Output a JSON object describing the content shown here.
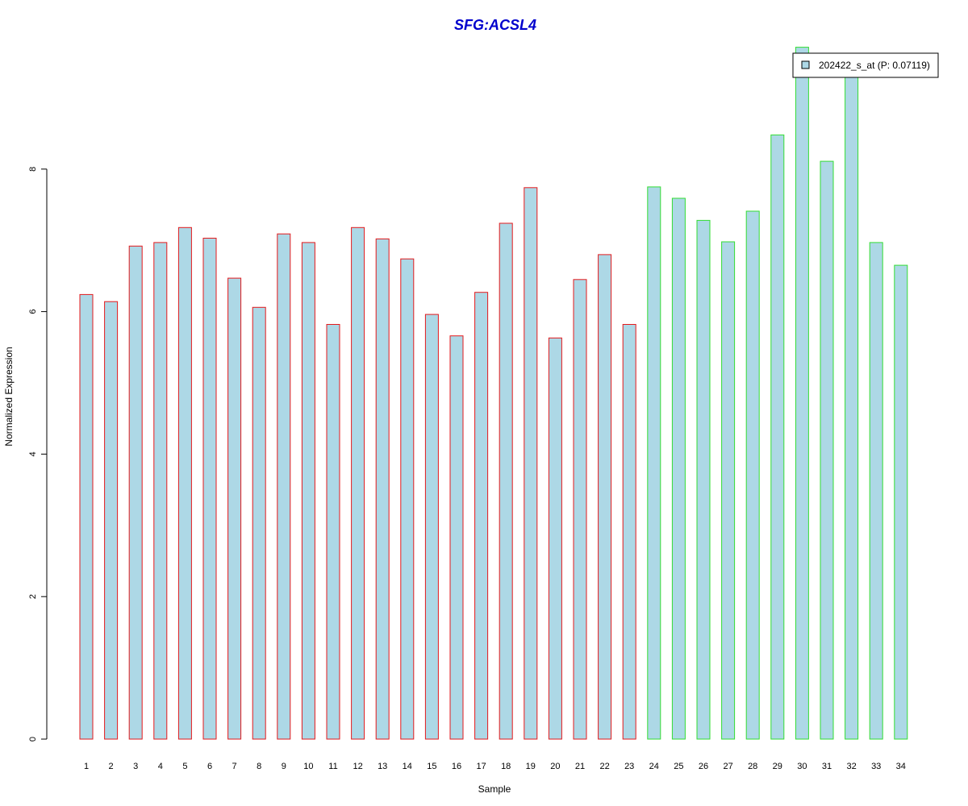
{
  "chart_data": {
    "type": "bar",
    "title": "SFG:ACSL4",
    "xlabel": "Sample",
    "ylabel": "Normalized Expression",
    "categories": [
      "1",
      "2",
      "3",
      "4",
      "5",
      "6",
      "7",
      "8",
      "9",
      "10",
      "11",
      "12",
      "13",
      "14",
      "15",
      "16",
      "17",
      "18",
      "19",
      "20",
      "21",
      "22",
      "23",
      "24",
      "25",
      "26",
      "27",
      "28",
      "29",
      "30",
      "31",
      "32",
      "33",
      "34"
    ],
    "series": [
      {
        "name": "202422_s_at (P: 0.07119)",
        "values": [
          6.24,
          6.14,
          6.92,
          6.97,
          7.18,
          7.03,
          6.47,
          6.06,
          7.09,
          6.97,
          5.82,
          7.18,
          7.02,
          6.74,
          5.96,
          5.66,
          6.27,
          7.24,
          7.74,
          5.63,
          6.45,
          6.8,
          5.82,
          7.75,
          7.59,
          7.28,
          6.98,
          7.41,
          8.48,
          9.71,
          8.11,
          9.38,
          6.97,
          6.65
        ]
      }
    ],
    "group_border_colors": [
      "#e41a1c",
      "#e41a1c",
      "#e41a1c",
      "#e41a1c",
      "#e41a1c",
      "#e41a1c",
      "#e41a1c",
      "#e41a1c",
      "#e41a1c",
      "#e41a1c",
      "#e41a1c",
      "#e41a1c",
      "#e41a1c",
      "#e41a1c",
      "#e41a1c",
      "#e41a1c",
      "#e41a1c",
      "#e41a1c",
      "#e41a1c",
      "#e41a1c",
      "#e41a1c",
      "#e41a1c",
      "#e41a1c",
      "#33dd33",
      "#33dd33",
      "#33dd33",
      "#33dd33",
      "#33dd33",
      "#33dd33",
      "#33dd33",
      "#33dd33",
      "#33dd33",
      "#33dd33",
      "#33dd33"
    ],
    "bar_fill": "#add8e6",
    "title_color": "#0000cd",
    "y_ticks": [
      "0",
      "2",
      "4",
      "6",
      "8"
    ],
    "ylim": [
      0,
      9.71
    ],
    "grid": false,
    "legend_position": "top-right"
  }
}
